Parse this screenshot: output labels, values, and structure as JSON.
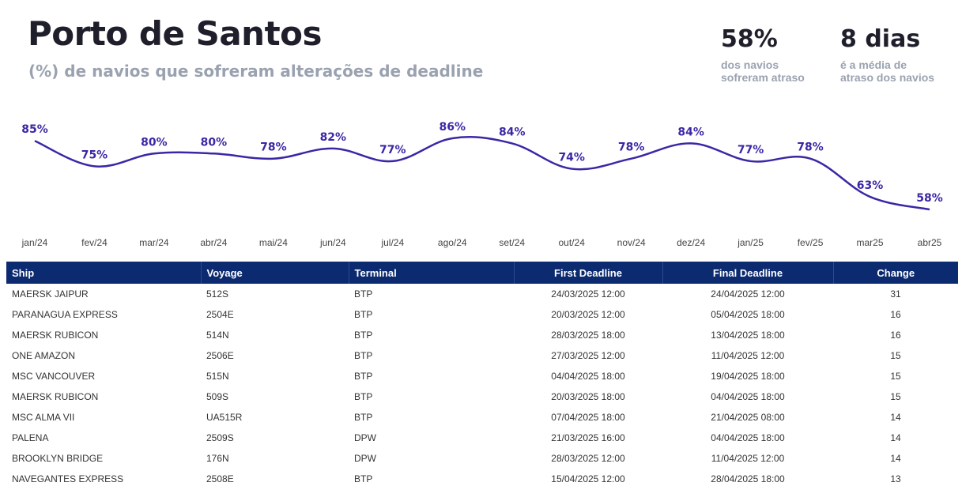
{
  "header": {
    "title": "Porto de Santos",
    "subtitle": "(%) de navios que sofreram alterações de deadline"
  },
  "stats": [
    {
      "value": "58%",
      "label": "dos navios\nsofreram atraso"
    },
    {
      "value": "8 dias",
      "label": "é a média de\natraso dos navios"
    }
  ],
  "chart_data": {
    "type": "line",
    "categories": [
      "jan/24",
      "fev/24",
      "mar/24",
      "abr/24",
      "mai/24",
      "jun/24",
      "jul/24",
      "ago/24",
      "set/24",
      "out/24",
      "nov/24",
      "dez/24",
      "jan/25",
      "fev/25",
      "mar25",
      "abr25"
    ],
    "series": [
      {
        "values": [
          85,
          75,
          80,
          80,
          78,
          82,
          77,
          86,
          84,
          74,
          78,
          84,
          77,
          78,
          63,
          58
        ],
        "labels": [
          "85%",
          "75%",
          "80%",
          "80%",
          "78%",
          "82%",
          "77%",
          "86%",
          "84%",
          "74%",
          "78%",
          "84%",
          "77%",
          "78%",
          "63%",
          "58%"
        ]
      }
    ],
    "line_color": "#3a27a6",
    "grid": false,
    "legend": "none"
  },
  "table": {
    "columns": [
      "Ship",
      "Voyage",
      "Terminal",
      "First Deadline",
      "Final Deadline",
      "Change"
    ],
    "rows": [
      [
        "MAERSK JAIPUR",
        "512S",
        "BTP",
        "24/03/2025 12:00",
        "24/04/2025 12:00",
        "31"
      ],
      [
        "PARANAGUA EXPRESS",
        "2504E",
        "BTP",
        "20/03/2025 12:00",
        "05/04/2025 18:00",
        "16"
      ],
      [
        "MAERSK RUBICON",
        "514N",
        "BTP",
        "28/03/2025 18:00",
        "13/04/2025 18:00",
        "16"
      ],
      [
        "ONE AMAZON",
        "2506E",
        "BTP",
        "27/03/2025 12:00",
        "11/04/2025 12:00",
        "15"
      ],
      [
        "MSC VANCOUVER",
        "515N",
        "BTP",
        "04/04/2025 18:00",
        "19/04/2025 18:00",
        "15"
      ],
      [
        "MAERSK RUBICON",
        "509S",
        "BTP",
        "20/03/2025 18:00",
        "04/04/2025 18:00",
        "15"
      ],
      [
        "MSC ALMA VII",
        "UA515R",
        "BTP",
        "07/04/2025 18:00",
        "21/04/2025 08:00",
        "14"
      ],
      [
        "PALENA",
        "2509S",
        "DPW",
        "21/03/2025 16:00",
        "04/04/2025 18:00",
        "14"
      ],
      [
        "BROOKLYN BRIDGE",
        "176N",
        "DPW",
        "28/03/2025 12:00",
        "11/04/2025 12:00",
        "14"
      ],
      [
        "NAVEGANTES EXPRESS",
        "2508E",
        "BTP",
        "15/04/2025 12:00",
        "28/04/2025 18:00",
        "13"
      ]
    ]
  }
}
